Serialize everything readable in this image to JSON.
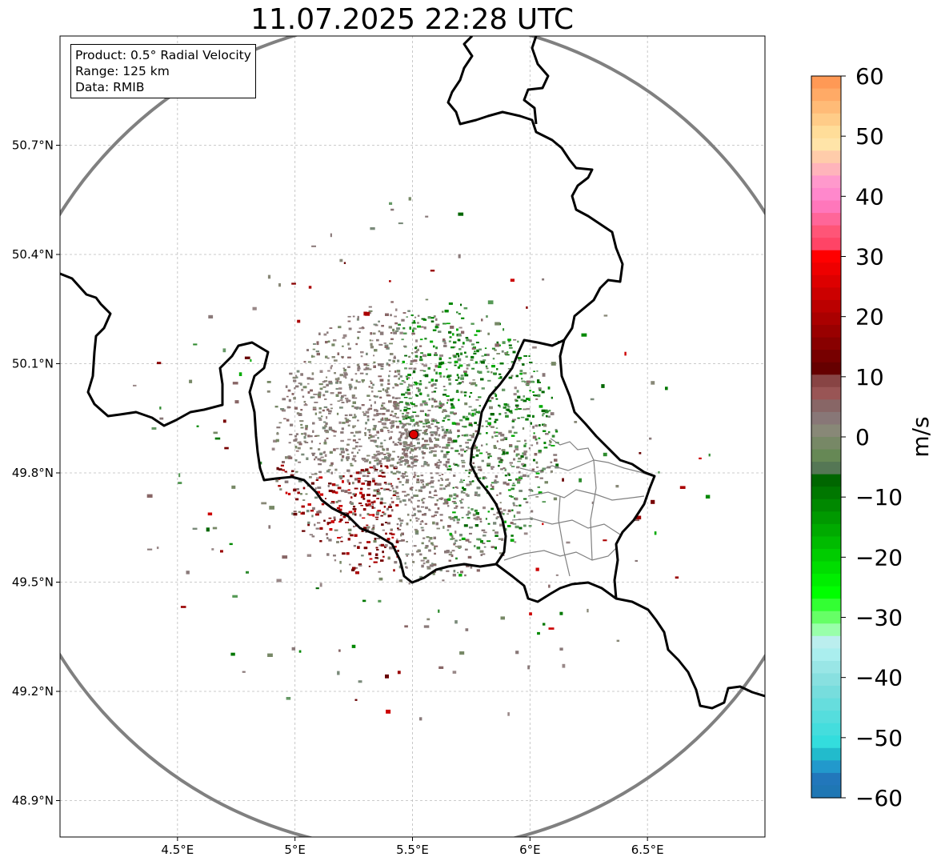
{
  "title": "11.07.2025 22:28 UTC",
  "info": {
    "product": "Product: 0.5° Radial Velocity",
    "range": "Range: 125 km",
    "data": "Data: RMIB"
  },
  "map": {
    "lon_range": [
      4.0,
      7.0
    ],
    "lat_range": [
      48.8,
      51.0
    ],
    "lon_ticks": [
      "4.5°E",
      "5°E",
      "5.5°E",
      "6°E",
      "6.5°E"
    ],
    "lon_tick_values": [
      4.5,
      5.0,
      5.5,
      6.0,
      6.5
    ],
    "lat_ticks": [
      "50.7°N",
      "50.4°N",
      "50.1°N",
      "49.8°N",
      "49.5°N",
      "49.2°N",
      "48.9°N"
    ],
    "lat_tick_values": [
      50.7,
      50.4,
      50.1,
      49.8,
      49.5,
      49.2,
      48.9
    ],
    "radar_site": {
      "lon": 5.505,
      "lat": 49.914
    },
    "range_km": 125,
    "gridlines": true
  },
  "colorbar": {
    "label": "m/s",
    "range": [
      -60,
      60
    ],
    "tick_values": [
      60,
      50,
      40,
      30,
      20,
      10,
      0,
      -10,
      -20,
      -30,
      -40,
      -50,
      -60
    ],
    "tick_labels": [
      "60",
      "50",
      "40",
      "30",
      "20",
      "10",
      "0",
      "−10",
      "−20",
      "−30",
      "−40",
      "−50",
      "−60"
    ],
    "colors_top_to_bottom": [
      "#ff9955",
      "#ffaa66",
      "#ffbb77",
      "#ffcc88",
      "#ffdd99",
      "#ffe4a8",
      "#ffccaa",
      "#ffb4bb",
      "#ff99cc",
      "#ff88cc",
      "#ff77bb",
      "#ff6699",
      "#ff5577",
      "#ff4466",
      "#ff0000",
      "#ee0000",
      "#dd0000",
      "#cc0000",
      "#bb0000",
      "#aa0000",
      "#990000",
      "#880000",
      "#770000",
      "#660000",
      "#884444",
      "#995555",
      "#886666",
      "#887777",
      "#888877",
      "#778866",
      "#668855",
      "#557755",
      "#006600",
      "#007700",
      "#008800",
      "#009900",
      "#00aa00",
      "#00bb00",
      "#00cc00",
      "#00dd00",
      "#00ee00",
      "#00ff00",
      "#33ff33",
      "#66ff66",
      "#99ffaa",
      "#bbeeee",
      "#aaeeee",
      "#99e6e6",
      "#88e0e0",
      "#77dddd",
      "#66dddd",
      "#55dddd",
      "#44dddd",
      "#33dddd",
      "#22bbcc",
      "#2299cc",
      "#2277bb",
      "#1f77b4"
    ]
  },
  "colors": {
    "range_ring": "#808080",
    "border": "#000000",
    "admin_lines": "#808080",
    "radar_marker": "#dd0000"
  }
}
